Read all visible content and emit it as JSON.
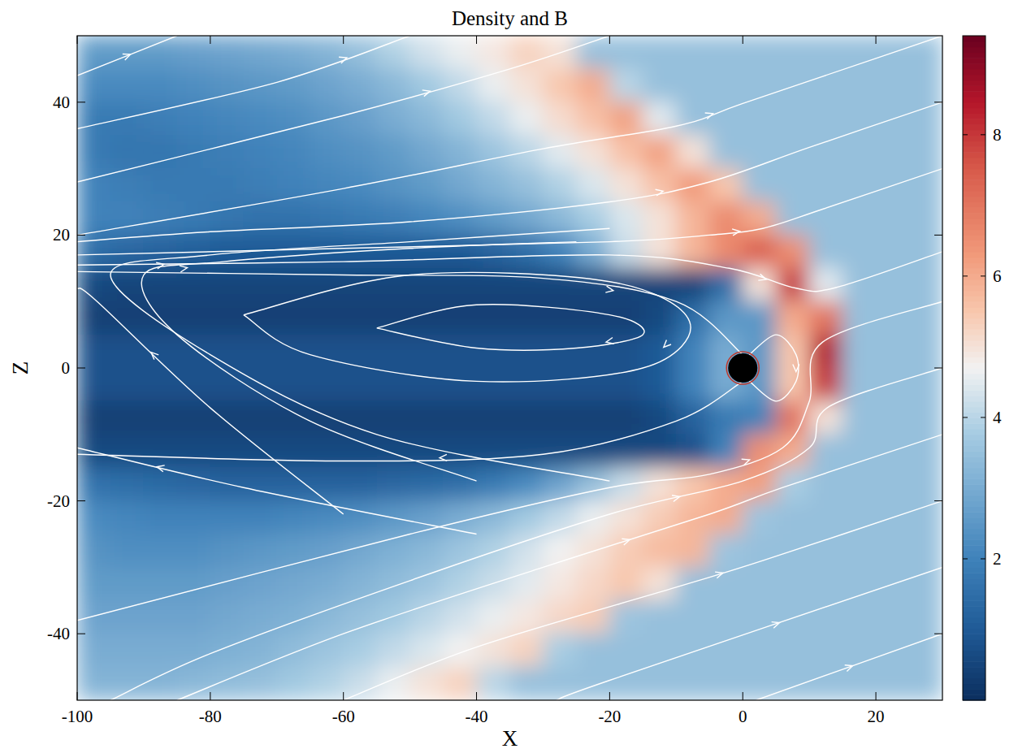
{
  "chart_data": {
    "type": "heatmap",
    "title": "Density and B",
    "x_label": "X",
    "y_label": "Z",
    "xlim": [
      -100,
      30
    ],
    "ylim": [
      -50,
      50
    ],
    "xticks": [
      -100,
      -80,
      -60,
      -40,
      -20,
      0,
      20
    ],
    "yticks": [
      -40,
      -20,
      0,
      20,
      40
    ],
    "x_edges": [
      -100,
      -95,
      -90,
      -85,
      -80,
      -75,
      -70,
      -65,
      -60,
      -55,
      -50,
      -45,
      -40,
      -35,
      -30,
      -25,
      -20,
      -15,
      -10,
      -5,
      0,
      5,
      10,
      15,
      20,
      25,
      30
    ],
    "y_edges": [
      50,
      45,
      40,
      35,
      30,
      25,
      20,
      15,
      10,
      5,
      0,
      -5,
      -10,
      -15,
      -20,
      -25,
      -30,
      -35,
      -40,
      -45,
      -50
    ],
    "cells": [
      [
        2.6,
        2.6,
        2.6,
        2.7,
        2.8,
        2.9,
        3.0,
        3.2,
        3.5,
        3.9,
        4.3,
        4.6,
        4.9,
        5.3,
        5.0,
        3.5,
        3.5,
        3.5,
        3.5,
        3.5,
        3.5,
        3.5,
        3.5,
        3.5,
        3.5,
        3.5
      ],
      [
        2.2,
        2.2,
        2.2,
        2.3,
        2.4,
        2.5,
        2.6,
        2.8,
        3.0,
        3.3,
        3.7,
        4.1,
        4.6,
        5.0,
        5.5,
        6.0,
        4.0,
        3.5,
        3.5,
        3.5,
        3.5,
        3.5,
        3.5,
        3.5,
        3.5,
        3.5
      ],
      [
        1.8,
        1.8,
        1.9,
        2.0,
        2.1,
        2.2,
        2.3,
        2.5,
        2.7,
        3.0,
        3.3,
        3.7,
        4.1,
        4.6,
        5.1,
        5.6,
        6.2,
        4.5,
        3.5,
        3.5,
        3.5,
        3.5,
        3.5,
        3.5,
        3.5,
        3.5
      ],
      [
        1.8,
        1.7,
        1.7,
        1.8,
        1.9,
        2.0,
        2.1,
        2.3,
        2.4,
        2.6,
        2.9,
        3.2,
        3.6,
        4.0,
        4.5,
        5.0,
        5.6,
        6.2,
        5.0,
        3.5,
        3.5,
        3.5,
        3.5,
        3.5,
        3.5,
        3.5
      ],
      [
        2.0,
        1.9,
        1.8,
        1.8,
        1.8,
        1.9,
        2.0,
        2.1,
        2.2,
        2.4,
        2.6,
        2.9,
        3.2,
        3.5,
        3.9,
        4.4,
        5.0,
        5.6,
        6.3,
        5.5,
        3.5,
        3.5,
        3.5,
        3.5,
        3.5,
        3.5
      ],
      [
        2.0,
        2.0,
        1.9,
        1.8,
        1.7,
        1.6,
        1.6,
        1.7,
        1.8,
        1.9,
        2.1,
        2.3,
        2.6,
        2.9,
        3.3,
        3.8,
        4.4,
        5.0,
        5.8,
        6.6,
        6.0,
        3.5,
        3.5,
        3.5,
        3.5,
        3.5
      ],
      [
        1.5,
        1.3,
        1.2,
        1.1,
        1.0,
        1.0,
        1.0,
        1.0,
        1.0,
        1.0,
        1.0,
        1.0,
        1.2,
        1.5,
        2.0,
        3.0,
        4.2,
        5.0,
        5.8,
        6.6,
        7.4,
        6.5,
        3.5,
        3.5,
        3.5,
        3.5
      ],
      [
        0.6,
        0.5,
        0.5,
        0.5,
        0.5,
        0.5,
        0.5,
        0.5,
        0.5,
        0.5,
        0.5,
        0.5,
        0.5,
        0.5,
        0.5,
        0.5,
        0.5,
        0.5,
        0.5,
        1.5,
        5.0,
        8.0,
        4.5,
        3.5,
        3.5,
        3.5
      ],
      [
        0.4,
        0.4,
        0.4,
        0.4,
        0.4,
        0.4,
        0.4,
        0.4,
        0.4,
        0.4,
        0.4,
        0.4,
        0.4,
        0.4,
        0.4,
        0.4,
        0.4,
        0.6,
        1.5,
        2.5,
        2.5,
        6.0,
        7.0,
        3.5,
        3.5,
        3.5
      ],
      [
        0.8,
        0.8,
        0.8,
        0.8,
        0.8,
        0.8,
        0.8,
        0.8,
        0.8,
        0.8,
        0.8,
        0.8,
        0.8,
        0.8,
        0.8,
        0.8,
        0.8,
        1.0,
        2.0,
        3.0,
        2.5,
        5.5,
        8.5,
        3.5,
        3.5,
        3.5
      ],
      [
        0.8,
        0.8,
        0.8,
        0.8,
        0.8,
        0.8,
        0.8,
        0.8,
        0.8,
        0.8,
        0.8,
        0.8,
        0.8,
        0.8,
        0.8,
        0.8,
        0.8,
        1.0,
        2.0,
        3.0,
        2.5,
        5.5,
        8.0,
        3.5,
        3.5,
        3.5
      ],
      [
        0.4,
        0.4,
        0.4,
        0.4,
        0.4,
        0.4,
        0.4,
        0.4,
        0.4,
        0.4,
        0.4,
        0.4,
        0.4,
        0.4,
        0.4,
        0.4,
        0.4,
        0.6,
        1.2,
        1.8,
        2.0,
        7.0,
        5.0,
        3.5,
        3.5,
        3.5
      ],
      [
        0.6,
        0.6,
        0.6,
        0.6,
        0.6,
        0.6,
        0.6,
        0.6,
        0.6,
        0.6,
        0.6,
        0.6,
        0.6,
        0.6,
        0.6,
        0.6,
        0.6,
        0.6,
        0.8,
        2.0,
        6.5,
        6.0,
        3.5,
        3.5,
        3.5,
        3.5
      ],
      [
        1.6,
        1.5,
        1.4,
        1.3,
        1.2,
        1.2,
        1.2,
        1.2,
        1.2,
        1.3,
        1.4,
        1.5,
        1.8,
        2.2,
        2.8,
        3.5,
        4.2,
        5.0,
        5.5,
        6.0,
        6.2,
        3.8,
        3.5,
        3.5,
        3.5,
        3.5
      ],
      [
        2.2,
        2.1,
        2.0,
        2.0,
        2.0,
        2.0,
        2.1,
        2.2,
        2.3,
        2.5,
        2.7,
        3.0,
        3.3,
        3.7,
        4.1,
        4.6,
        5.0,
        5.4,
        5.8,
        6.0,
        3.6,
        3.5,
        3.5,
        3.5,
        3.5,
        3.5
      ],
      [
        2.4,
        2.3,
        2.3,
        2.3,
        2.4,
        2.5,
        2.6,
        2.7,
        2.9,
        3.1,
        3.3,
        3.6,
        3.9,
        4.3,
        4.7,
        5.0,
        5.4,
        5.7,
        5.8,
        3.6,
        3.5,
        3.5,
        3.5,
        3.5,
        3.5,
        3.5
      ],
      [
        2.6,
        2.6,
        2.6,
        2.6,
        2.7,
        2.8,
        2.9,
        3.0,
        3.2,
        3.4,
        3.6,
        3.9,
        4.2,
        4.5,
        4.9,
        5.2,
        5.5,
        5.0,
        3.5,
        3.5,
        3.5,
        3.5,
        3.5,
        3.5,
        3.5,
        3.5
      ],
      [
        2.8,
        2.8,
        2.8,
        2.8,
        2.9,
        3.0,
        3.1,
        3.3,
        3.5,
        3.7,
        4.0,
        4.3,
        4.6,
        4.9,
        5.2,
        5.4,
        3.6,
        3.5,
        3.5,
        3.5,
        3.5,
        3.5,
        3.5,
        3.5,
        3.5,
        3.5
      ],
      [
        3.0,
        3.0,
        3.0,
        3.0,
        3.1,
        3.2,
        3.4,
        3.6,
        3.8,
        4.1,
        4.4,
        4.7,
        5.0,
        5.3,
        3.8,
        3.5,
        3.5,
        3.5,
        3.5,
        3.5,
        3.5,
        3.5,
        3.5,
        3.5,
        3.5,
        3.5
      ],
      [
        3.2,
        3.2,
        3.2,
        3.3,
        3.4,
        3.5,
        3.7,
        3.9,
        4.2,
        4.6,
        5.0,
        5.3,
        4.0,
        3.5,
        3.5,
        3.5,
        3.5,
        3.5,
        3.5,
        3.5,
        3.5,
        3.5,
        3.5,
        3.5,
        3.5,
        3.5
      ]
    ],
    "colorbar": {
      "range": [
        0,
        9.4
      ],
      "ticks": [
        2,
        4,
        6,
        8
      ]
    },
    "field_lines": [
      {
        "x": [
          -100,
          -60,
          -30,
          -10,
          0,
          20,
          30
        ],
        "y": [
          20,
          27,
          33,
          36.4,
          39.8,
          46.6,
          50
        ]
      },
      {
        "x": [
          -100,
          -80,
          -50,
          -20,
          -5,
          10,
          30
        ],
        "y": [
          19,
          20.5,
          22,
          25,
          28,
          33.2,
          40
        ]
      },
      {
        "x": [
          -100,
          -60,
          -20,
          -5,
          3,
          12,
          30
        ],
        "y": [
          17,
          18,
          19,
          20,
          21,
          23.9,
          30
        ]
      },
      {
        "x": [
          -100,
          -60,
          -20,
          -2,
          8,
          14,
          30
        ],
        "y": [
          15.5,
          16,
          17,
          15,
          12,
          12.1,
          17.5
        ]
      },
      {
        "x": [
          -85,
          -60,
          -30,
          -5,
          6,
          30
        ],
        "y": [
          -50,
          -40,
          -30,
          -22,
          -18,
          -10
        ]
      },
      {
        "x": [
          -95,
          -80,
          -50,
          -20,
          0,
          10,
          13,
          30
        ],
        "y": [
          -50,
          -43,
          -32,
          -22,
          -17,
          -12,
          -5.8,
          0
        ]
      },
      {
        "x": [
          -100,
          -50,
          -20,
          -5,
          6,
          10,
          12,
          30
        ],
        "y": [
          -38,
          -25,
          -18,
          -16,
          -12,
          -5,
          3.9,
          10
        ]
      },
      {
        "x": [
          -60,
          -40,
          -10,
          3,
          30
        ],
        "y": [
          -50,
          -42,
          -33,
          -29,
          -20
        ]
      },
      {
        "x": [
          -28,
          -20,
          30
        ],
        "y": [
          -50,
          -47,
          -30
        ]
      },
      {
        "x": [
          2,
          30
        ],
        "y": [
          -50,
          -40
        ]
      },
      {
        "x": [
          -100,
          -60,
          -35,
          -20
        ],
        "y": [
          28,
          38,
          45,
          50
        ]
      },
      {
        "x": [
          -100,
          -70,
          -50
        ],
        "y": [
          36,
          43,
          50
        ]
      },
      {
        "x": [
          -100,
          -85
        ],
        "y": [
          44,
          50
        ]
      },
      {
        "x": [
          -20,
          -55,
          -80,
          -95,
          -80,
          -50,
          -20
        ],
        "y": [
          -17,
          -10,
          2,
          14,
          17,
          19,
          21
        ]
      },
      {
        "x": [
          -40,
          -65,
          -85,
          -90,
          -78,
          -50,
          -25
        ],
        "y": [
          -17,
          -8,
          5,
          14,
          16,
          18,
          19
        ]
      },
      {
        "x": [
          -60,
          -80,
          -97,
          -100
        ],
        "y": [
          -22,
          -6,
          10,
          12
        ]
      },
      {
        "x": [
          -40,
          -75,
          -100
        ],
        "y": [
          -25,
          -18,
          -12
        ]
      },
      {
        "x": [
          -100,
          -60,
          -30,
          -10,
          0
        ],
        "y": [
          14.5,
          14,
          13.5,
          10,
          2
        ]
      },
      {
        "x": [
          0,
          -10,
          -30,
          -60,
          -100
        ],
        "y": [
          -2,
          -8,
          -13,
          -14,
          -13
        ]
      },
      {
        "x": [
          -55,
          -40,
          -20,
          -15,
          -25,
          -40,
          -55
        ],
        "y": [
          6,
          9.5,
          8,
          5,
          3,
          3,
          6
        ]
      },
      {
        "x": [
          -75,
          -50,
          -20,
          -8,
          -15,
          -40,
          -65,
          -75
        ],
        "y": [
          8,
          14,
          13,
          7,
          0,
          -2,
          2,
          8
        ]
      },
      {
        "x": [
          1,
          5,
          8,
          8,
          5,
          1
        ],
        "y": [
          2,
          5,
          2,
          -2,
          -5,
          -2
        ]
      }
    ]
  }
}
